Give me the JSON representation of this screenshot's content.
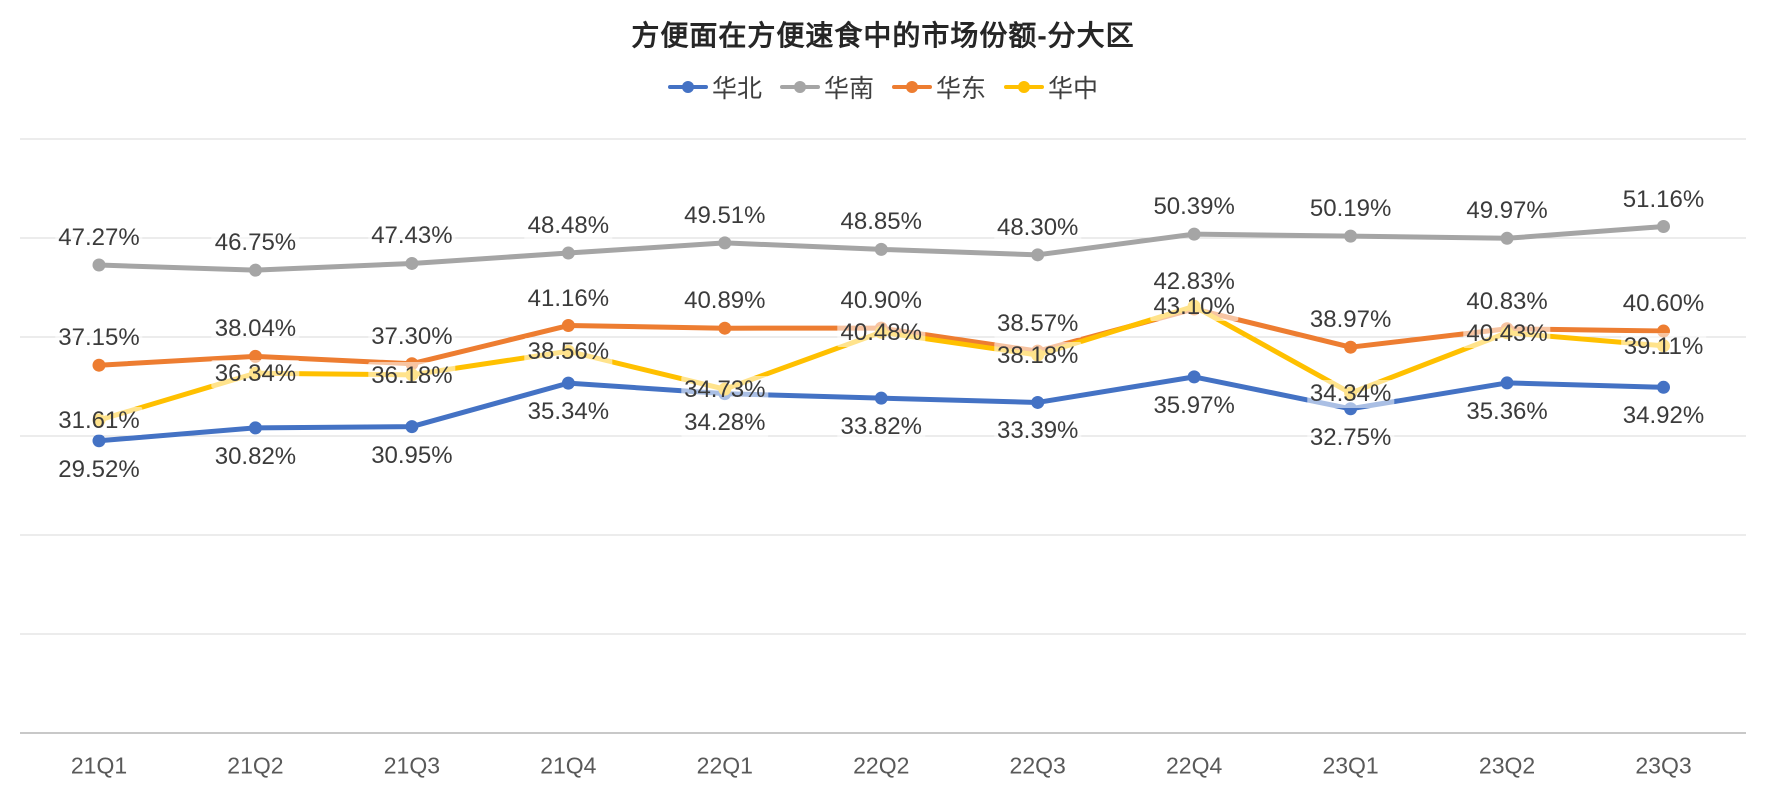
{
  "chart_data": {
    "type": "line",
    "title": "方便面在方便速食中的市场份额-分大区",
    "categories": [
      "21Q1",
      "21Q2",
      "21Q3",
      "21Q4",
      "22Q1",
      "22Q2",
      "22Q3",
      "22Q4",
      "23Q1",
      "23Q2",
      "23Q3"
    ],
    "series": [
      {
        "name": "华北",
        "color": "#4472C4",
        "label_position": "below",
        "values": [
          29.52,
          30.82,
          30.95,
          35.34,
          34.28,
          33.82,
          33.39,
          35.97,
          32.75,
          35.36,
          34.92
        ]
      },
      {
        "name": "华南",
        "color": "#A5A5A5",
        "label_position": "above",
        "values": [
          47.27,
          46.75,
          47.43,
          48.48,
          49.51,
          48.85,
          48.3,
          50.39,
          50.19,
          49.97,
          51.16
        ]
      },
      {
        "name": "华东",
        "color": "#ED7D31",
        "label_position": "above",
        "values": [
          37.15,
          38.04,
          37.3,
          41.16,
          40.89,
          40.9,
          38.57,
          42.83,
          38.97,
          40.83,
          40.6
        ]
      },
      {
        "name": "华中",
        "color": "#FFC000",
        "label_position": "center",
        "values": [
          31.61,
          36.34,
          36.18,
          38.56,
          34.73,
          40.48,
          38.18,
          43.1,
          34.34,
          40.43,
          39.11
        ]
      }
    ],
    "ylim": [
      0,
      60
    ],
    "grid_step": 10,
    "grid_on": true,
    "legend_position": "top",
    "value_suffix": "%",
    "value_decimals": 2,
    "colors": {
      "gridline": "#D9D9D9",
      "axis_line": "#C8C8C8",
      "data_label": "#3B3B3B",
      "axis_label": "#595959",
      "title": "#262626",
      "legend_label": "#3F3F3F"
    }
  }
}
